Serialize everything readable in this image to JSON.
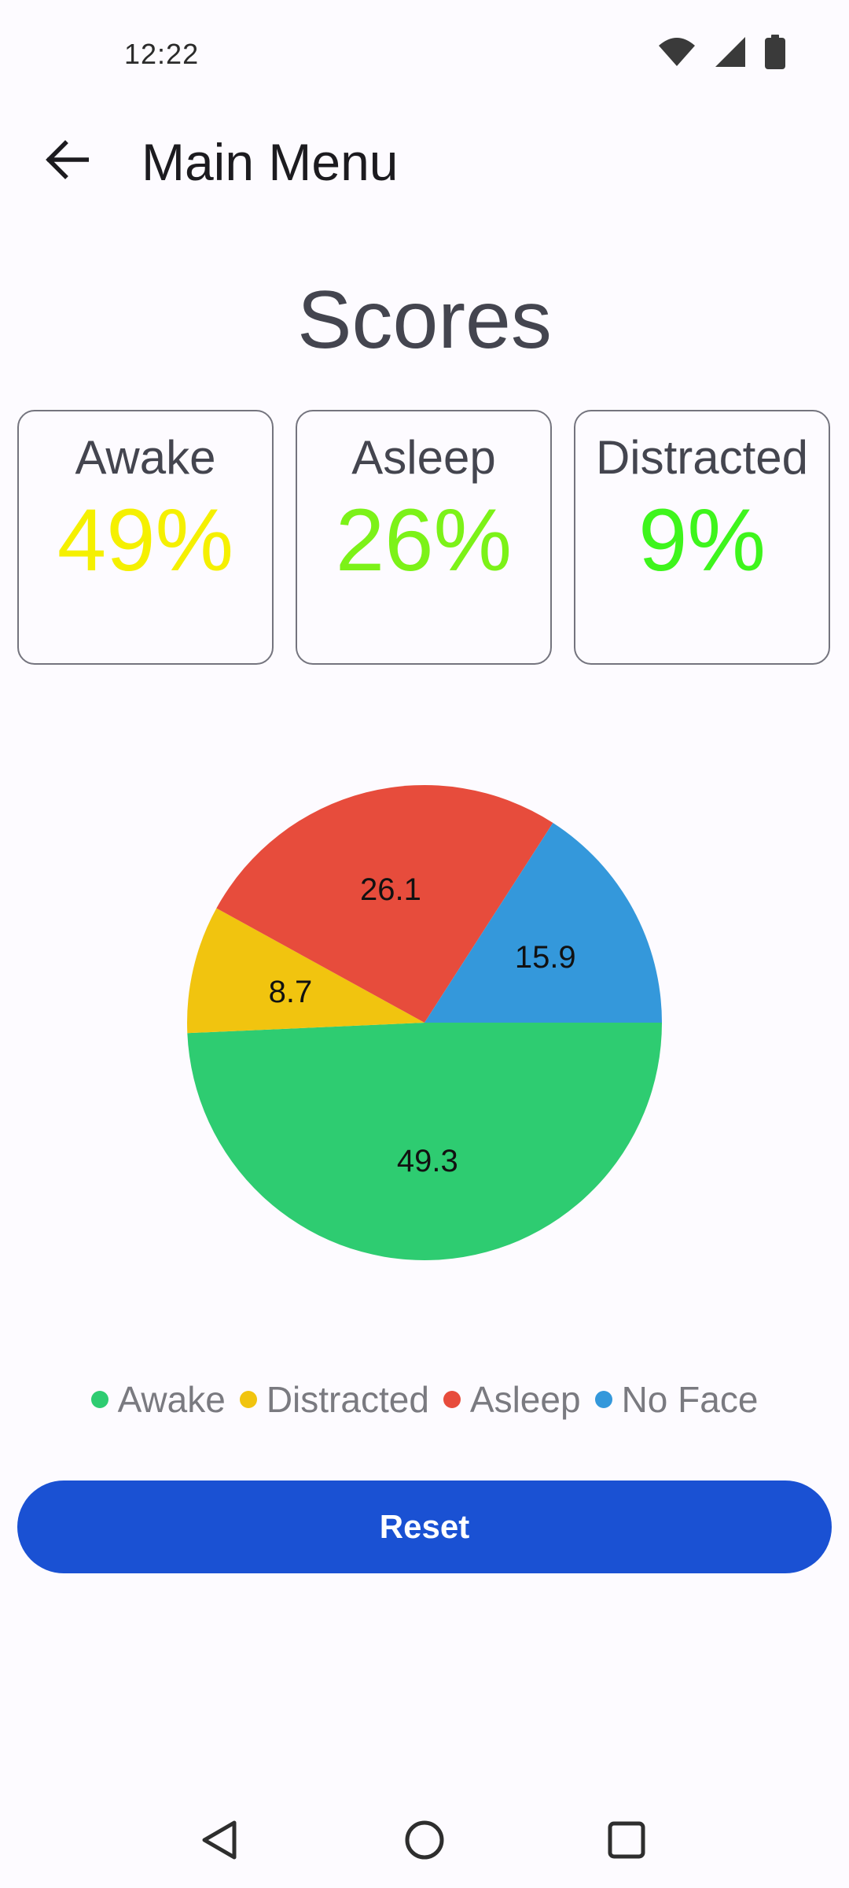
{
  "status_bar": {
    "time": "12:22",
    "icons": [
      "wifi-icon",
      "cellular-signal-icon",
      "battery-icon"
    ]
  },
  "app_bar": {
    "back_icon": "arrow-back-icon",
    "title": "Main Menu"
  },
  "scores": {
    "title": "Scores",
    "cards": [
      {
        "label": "Awake",
        "value": "49%",
        "color": "#f5f000"
      },
      {
        "label": "Asleep",
        "value": "26%",
        "color": "#7cf218"
      },
      {
        "label": "Distracted",
        "value": "9%",
        "color": "#3ef51c"
      }
    ]
  },
  "chart_data": {
    "type": "pie",
    "slices": [
      {
        "name": "Awake",
        "value": 49.3,
        "label": "49.3",
        "color": "#2ecc71"
      },
      {
        "name": "Distracted",
        "value": 8.7,
        "label": "8.7",
        "color": "#f1c40f"
      },
      {
        "name": "Asleep",
        "value": 26.1,
        "label": "26.1",
        "color": "#e74c3c"
      },
      {
        "name": "No Face",
        "value": 15.9,
        "label": "15.9",
        "color": "#3498db"
      }
    ],
    "legend_placement": "bottom"
  },
  "legend": {
    "items": [
      {
        "label": "Awake",
        "color": "#2ecc71"
      },
      {
        "label": "Distracted",
        "color": "#f1c40f"
      },
      {
        "label": "Asleep",
        "color": "#e74c3c"
      },
      {
        "label": "No Face",
        "color": "#3498db"
      }
    ]
  },
  "actions": {
    "reset_label": "Reset"
  },
  "nav_bar": {
    "icons": [
      "nav-back-icon",
      "nav-home-icon",
      "nav-recents-icon"
    ]
  }
}
